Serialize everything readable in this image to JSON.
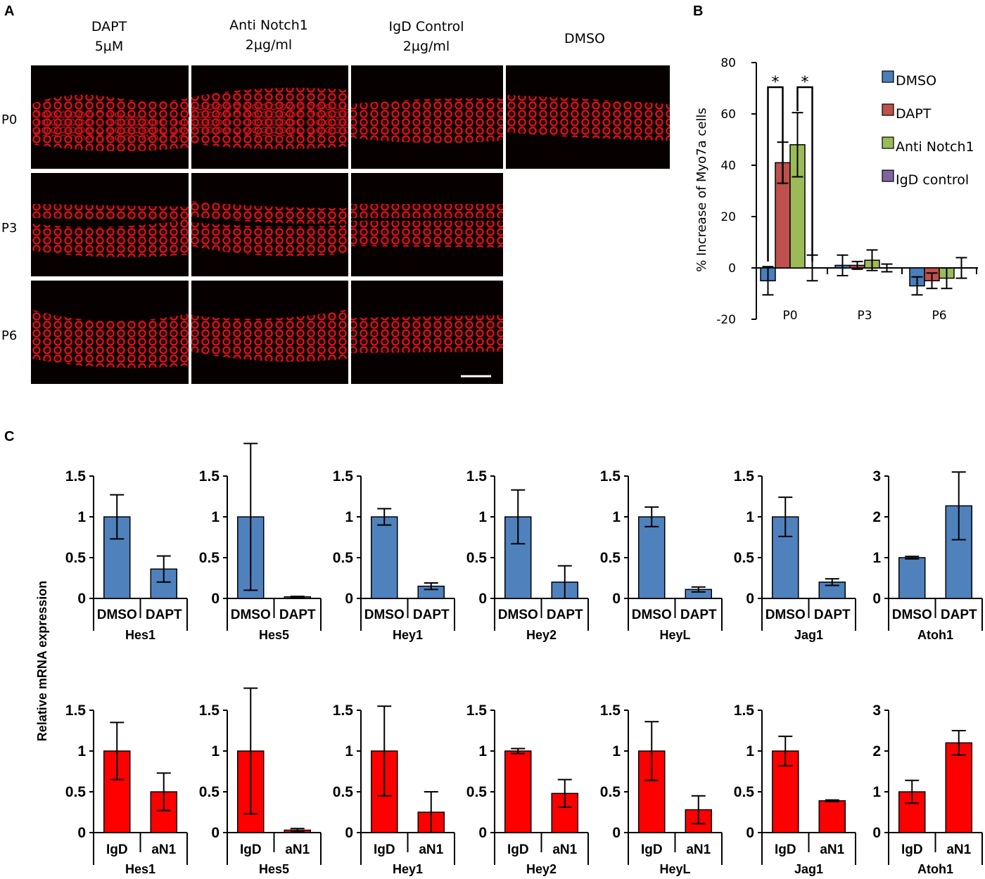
{
  "panel_a": {
    "label": "A",
    "columns": [
      {
        "line1": "DAPT",
        "line2": "5µM"
      },
      {
        "line1": "Anti Notch1",
        "line2": "2µg/ml"
      },
      {
        "line1": "IgD Control",
        "line2": "2µg/ml"
      },
      {
        "line1": "DMSO",
        "line2": ""
      }
    ],
    "rows": [
      "P0",
      "P3",
      "P6"
    ]
  },
  "chart_data": [
    {
      "id": "B",
      "panel_label": "B",
      "type": "bar",
      "title": "",
      "ylabel": "% Increase of Myo7a cells",
      "xlabel": "",
      "categories": [
        "P0",
        "P3",
        "P6"
      ],
      "ylim": [
        -20,
        80
      ],
      "yticks": [
        -20,
        0,
        20,
        40,
        60,
        80
      ],
      "series": [
        {
          "name": "DMSO",
          "color": "#4a7ebb",
          "values": [
            -5,
            1,
            -7
          ],
          "errors": [
            5.5,
            4,
            3.5
          ]
        },
        {
          "name": "DAPT",
          "color": "#c0504d",
          "values": [
            41,
            1,
            -5
          ],
          "errors": [
            8,
            1.5,
            3
          ]
        },
        {
          "name": "Anti Notch1",
          "color": "#9bbb59",
          "values": [
            48,
            3,
            -4
          ],
          "errors": [
            12.5,
            4,
            4
          ]
        },
        {
          "name": "IgD control",
          "color": "#8064a2",
          "values": [
            0,
            0,
            0
          ],
          "errors": [
            5,
            1.5,
            4
          ]
        }
      ],
      "annotations": [
        {
          "text": "*",
          "between": [
            "DMSO",
            "DAPT"
          ],
          "category": "P0"
        },
        {
          "text": "*",
          "between": [
            "Anti Notch1",
            "IgD control"
          ],
          "category": "P0"
        }
      ],
      "legend": "top-right"
    },
    {
      "id": "C",
      "panel_label": "C",
      "type": "bar",
      "ylabel": "Relative mRNA expression",
      "rows": [
        {
          "color": "#4f81bd",
          "labels": [
            "DMSO",
            "DAPT"
          ],
          "charts": [
            {
              "gene": "Hes1",
              "ylim": [
                0,
                1.5
              ],
              "yticks": [
                "0",
                "0.5",
                "1",
                "1.5"
              ],
              "values": [
                1,
                0.36
              ],
              "errors": [
                0.27,
                0.16
              ]
            },
            {
              "gene": "Hes5",
              "ylim": [
                0,
                1.5
              ],
              "yticks": [
                "0",
                "0.5",
                "1",
                "1.5"
              ],
              "values": [
                1,
                0.02
              ],
              "errors": [
                0.9,
                0.005
              ]
            },
            {
              "gene": "Hey1",
              "ylim": [
                0,
                1.5
              ],
              "yticks": [
                "0",
                "0.5",
                "1",
                "1.5"
              ],
              "values": [
                1,
                0.15
              ],
              "errors": [
                0.1,
                0.04
              ]
            },
            {
              "gene": "Hey2",
              "ylim": [
                0,
                1.5
              ],
              "yticks": [
                "0",
                "0.5",
                "1",
                "1.5"
              ],
              "values": [
                1,
                0.2
              ],
              "errors": [
                0.33,
                0.2
              ]
            },
            {
              "gene": "HeyL",
              "ylim": [
                0,
                1.5
              ],
              "yticks": [
                "0",
                "0.5",
                "1",
                "1.5"
              ],
              "values": [
                1,
                0.11
              ],
              "errors": [
                0.12,
                0.03
              ]
            },
            {
              "gene": "Jag1",
              "ylim": [
                0,
                1.5
              ],
              "yticks": [
                "0",
                "0.5",
                "1",
                "1.5"
              ],
              "values": [
                1,
                0.2
              ],
              "errors": [
                0.24,
                0.04
              ]
            },
            {
              "gene": "Atoh1",
              "ylim": [
                0,
                3
              ],
              "yticks": [
                "0",
                "1",
                "2",
                "3"
              ],
              "values": [
                1,
                2.27
              ],
              "errors": [
                0.03,
                0.83
              ]
            }
          ]
        },
        {
          "color": "#ff0000",
          "labels": [
            "IgD",
            "aN1"
          ],
          "charts": [
            {
              "gene": "Hes1",
              "ylim": [
                0,
                1.5
              ],
              "yticks": [
                "0",
                "0.5",
                "1",
                "1.5"
              ],
              "values": [
                1,
                0.5
              ],
              "errors": [
                0.35,
                0.23
              ]
            },
            {
              "gene": "Hes5",
              "ylim": [
                0,
                1.5
              ],
              "yticks": [
                "0",
                "0.5",
                "1",
                "1.5"
              ],
              "values": [
                1,
                0.03
              ],
              "errors": [
                0.77,
                0.02
              ]
            },
            {
              "gene": "Hey1",
              "ylim": [
                0,
                1.5
              ],
              "yticks": [
                "0",
                "0.5",
                "1",
                "1.5"
              ],
              "values": [
                1,
                0.25
              ],
              "errors": [
                0.55,
                0.25
              ]
            },
            {
              "gene": "Hey2",
              "ylim": [
                0,
                1.5
              ],
              "yticks": [
                "0",
                "0.5",
                "1",
                "1.5"
              ],
              "values": [
                1,
                0.48
              ],
              "errors": [
                0.03,
                0.17
              ]
            },
            {
              "gene": "HeyL",
              "ylim": [
                0,
                1.5
              ],
              "yticks": [
                "0",
                "0.5",
                "1",
                "1.5"
              ],
              "values": [
                1,
                0.28
              ],
              "errors": [
                0.36,
                0.17
              ]
            },
            {
              "gene": "Jag1",
              "ylim": [
                0,
                1.5
              ],
              "yticks": [
                "0",
                "0.5",
                "1",
                "1.5"
              ],
              "values": [
                1,
                0.39
              ],
              "errors": [
                0.18,
                0.01
              ]
            },
            {
              "gene": "Atoh1",
              "ylim": [
                0,
                3
              ],
              "yticks": [
                "0",
                "1",
                "2",
                "3"
              ],
              "values": [
                1,
                2.2
              ],
              "errors": [
                0.28,
                0.3
              ]
            }
          ]
        }
      ]
    }
  ]
}
